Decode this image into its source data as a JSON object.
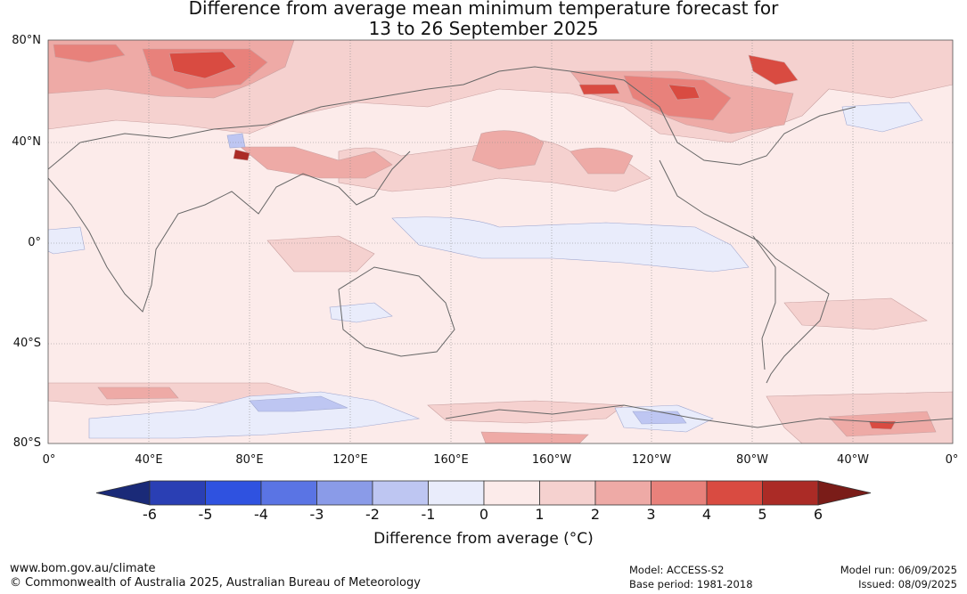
{
  "title": {
    "line1": "Difference from average mean minimum temperature forecast for",
    "line2": "13 to 26 September 2025"
  },
  "map": {
    "lat_labels": [
      "80°N",
      "40°N",
      "0°",
      "40°S",
      "80°S"
    ],
    "lon_labels": [
      "0°",
      "40°E",
      "80°E",
      "120°E",
      "160°E",
      "160°W",
      "120°W",
      "80°W",
      "40°W",
      "0°"
    ],
    "gridlines": true,
    "colors": {
      "ocean_base": "#fcebea",
      "coast": "#666666"
    }
  },
  "colorbar": {
    "ticks": [
      "-6",
      "-5",
      "-4",
      "-3",
      "-2",
      "-1",
      "0",
      "1",
      "2",
      "3",
      "4",
      "5",
      "6"
    ],
    "colors": [
      "#1a2a78",
      "#2a3fb4",
      "#2f52e0",
      "#5a74e4",
      "#8a9be8",
      "#bec6f2",
      "#e9ecfb",
      "#fcebea",
      "#f5d1cf",
      "#eeaaa6",
      "#e8817b",
      "#d94b41",
      "#ab2b26",
      "#7a1c18"
    ],
    "label": "Difference from average (°C)"
  },
  "footer": {
    "website": "www.bom.gov.au/climate",
    "copyright": "© Commonwealth of Australia 2025, Australian Bureau of Meteorology",
    "model": "Model: ACCESS-S2",
    "base_period": "Base period: 1981-2018",
    "model_run": "Model run: 06/09/2025",
    "issued": "Issued: 08/09/2025"
  }
}
